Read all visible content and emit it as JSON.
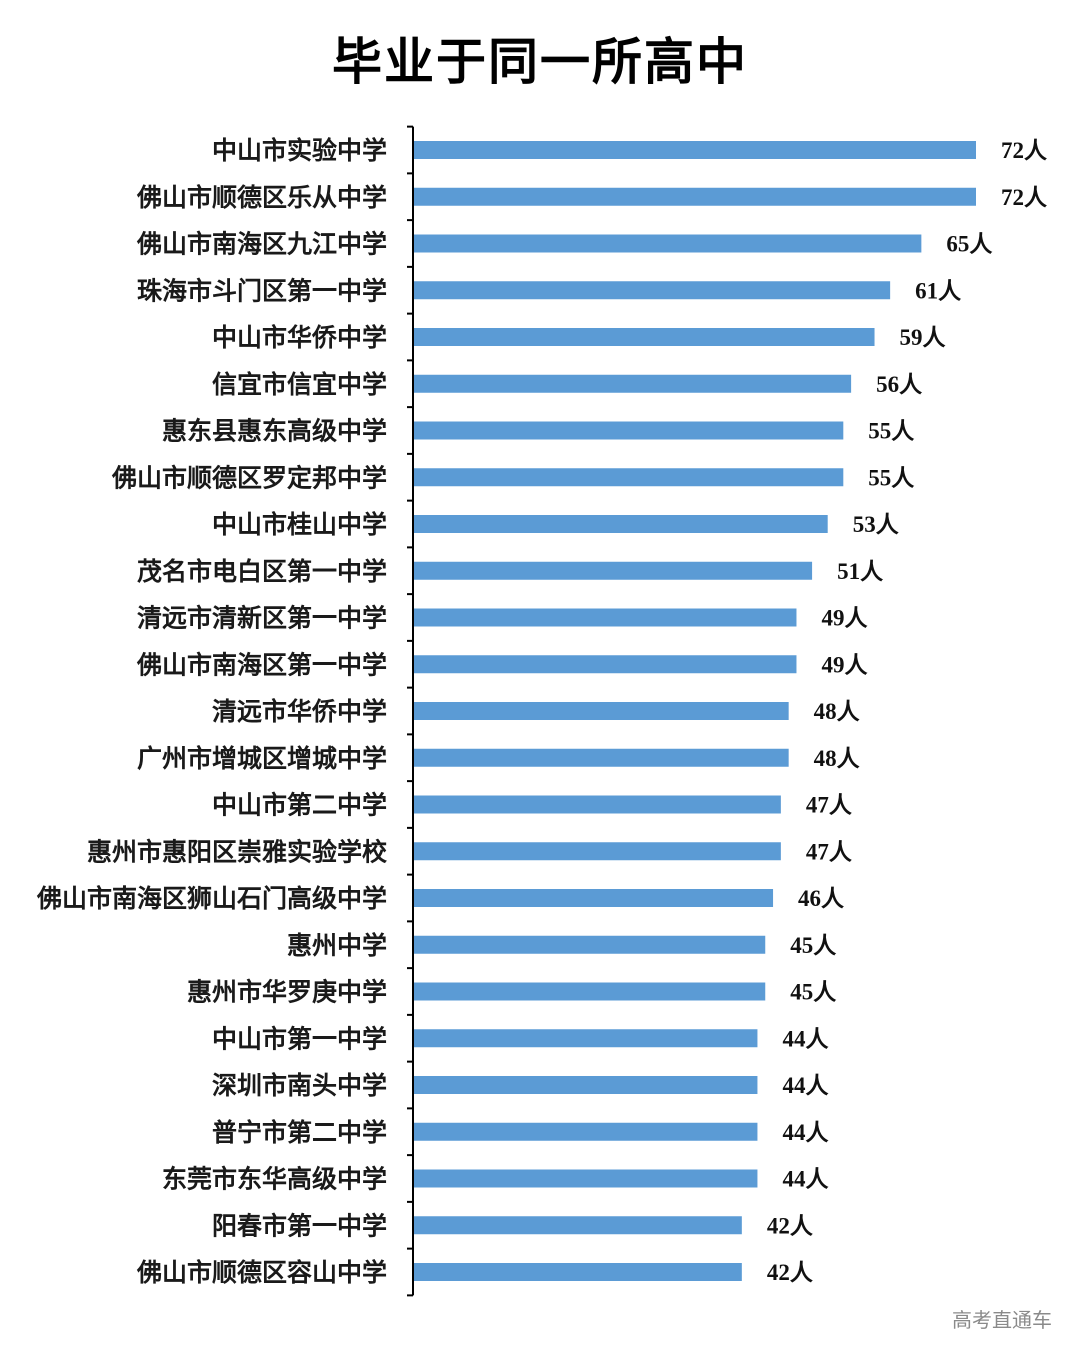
{
  "chart_data": {
    "type": "bar",
    "orientation": "horizontal",
    "title": "毕业于同一所高中",
    "unit_suffix": "人",
    "bar_color": "#5b9bd5",
    "categories": [
      "中山市实验中学",
      "佛山市顺德区乐从中学",
      "佛山市南海区九江中学",
      "珠海市斗门区第一中学",
      "中山市华侨中学",
      "信宜市信宜中学",
      "惠东县惠东高级中学",
      "佛山市顺德区罗定邦中学",
      "中山市桂山中学",
      "茂名市电白区第一中学",
      "清远市清新区第一中学",
      "佛山市南海区第一中学",
      "清远市华侨中学",
      "广州市增城区增城中学",
      "中山市第二中学",
      "惠州市惠阳区崇雅实验学校",
      "佛山市南海区狮山石门高级中学",
      "惠州中学",
      "惠州市华罗庚中学",
      "中山市第一中学",
      "深圳市南头中学",
      "普宁市第二中学",
      "东莞市东华高级中学",
      "阳春市第一中学",
      "佛山市顺德区容山中学"
    ],
    "values": [
      72,
      72,
      65,
      61,
      59,
      56,
      55,
      55,
      53,
      51,
      49,
      49,
      48,
      48,
      47,
      47,
      46,
      45,
      45,
      44,
      44,
      44,
      44,
      42,
      42
    ],
    "value_labels": [
      "72人",
      "72人",
      "65人",
      "61人",
      "59人",
      "56人",
      "55人",
      "55人",
      "53人",
      "51人",
      "49人",
      "49人",
      "48人",
      "48人",
      "47人",
      "47人",
      "46人",
      "45人",
      "45人",
      "44人",
      "44人",
      "44人",
      "44人",
      "42人",
      "42人"
    ],
    "xlim": [
      0,
      72
    ],
    "grid": false,
    "legend": "none"
  },
  "watermark": "高考直通车"
}
